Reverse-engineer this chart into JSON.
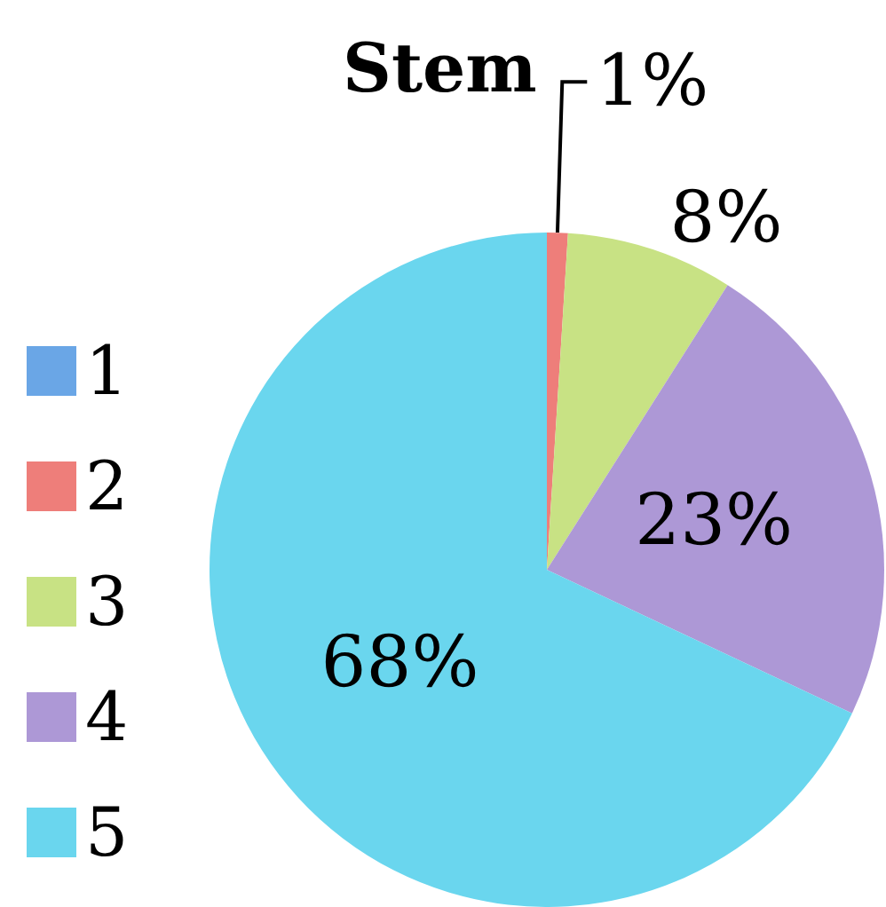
{
  "chart_data": {
    "type": "pie",
    "title": "Stem",
    "categories": [
      "1",
      "2",
      "3",
      "4",
      "5"
    ],
    "values": [
      0,
      1,
      8,
      23,
      68
    ],
    "colors": [
      "#6aa6e6",
      "#ee7e7a",
      "#c8e284",
      "#ad98d6",
      "#6ad6ee"
    ],
    "value_labels": [
      null,
      "1%",
      "8%",
      "23%",
      "68%"
    ],
    "legend": "left"
  }
}
